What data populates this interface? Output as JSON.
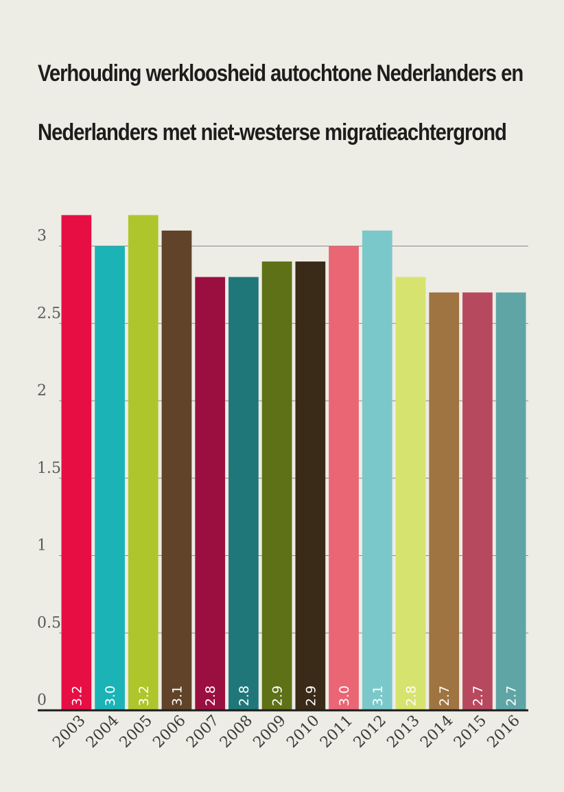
{
  "chart_data": {
    "type": "bar",
    "title_lines": [
      "Verhouding werkloosheid autochtone Nederlanders en",
      "Nederlanders met niet-westerse migratieachtergrond"
    ],
    "xlabel": "",
    "ylabel": "",
    "ylim": [
      0,
      3.2
    ],
    "yticks": [
      "0",
      "0.5",
      "1",
      "1.5",
      "2",
      "2.5",
      "3"
    ],
    "ytick_values": [
      0,
      0.5,
      1,
      1.5,
      2,
      2.5,
      3
    ],
    "categories": [
      "2003",
      "2004",
      "2005",
      "2006",
      "2007",
      "2008",
      "2009",
      "2010",
      "2011",
      "2012",
      "2013",
      "2014",
      "2015",
      "2016"
    ],
    "values": [
      3.2,
      3.0,
      3.2,
      3.1,
      2.8,
      2.8,
      2.9,
      2.9,
      3.0,
      3.1,
      2.8,
      2.7,
      2.7,
      2.7
    ],
    "data_labels": [
      "3.2",
      "3.0",
      "3.2",
      "3.1",
      "2.8",
      "2.8",
      "2.9",
      "2.9",
      "3.0",
      "3.1",
      "2.8",
      "2.7",
      "2.7",
      "2.7"
    ],
    "colors": [
      "#e60e43",
      "#1bb3b6",
      "#aec62c",
      "#604328",
      "#9b0f40",
      "#20777a",
      "#5e7116",
      "#3a2a18",
      "#ea6675",
      "#7bc8ca",
      "#d6e36f",
      "#9f7441",
      "#b7495f",
      "#5fa5a6"
    ],
    "grid": true,
    "legend": "none"
  }
}
